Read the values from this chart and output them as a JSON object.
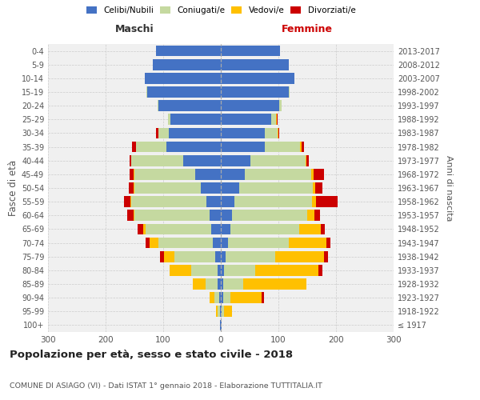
{
  "age_groups": [
    "100+",
    "95-99",
    "90-94",
    "85-89",
    "80-84",
    "75-79",
    "70-74",
    "65-69",
    "60-64",
    "55-59",
    "50-54",
    "45-49",
    "40-44",
    "35-39",
    "30-34",
    "25-29",
    "20-24",
    "15-19",
    "10-14",
    "5-9",
    "0-4"
  ],
  "birth_years": [
    "≤ 1917",
    "1918-1922",
    "1923-1927",
    "1928-1932",
    "1933-1937",
    "1938-1942",
    "1943-1947",
    "1948-1952",
    "1953-1957",
    "1958-1962",
    "1963-1967",
    "1968-1972",
    "1973-1977",
    "1978-1982",
    "1983-1987",
    "1988-1992",
    "1993-1997",
    "1998-2002",
    "2003-2007",
    "2008-2012",
    "2013-2017"
  ],
  "males": {
    "celibi": [
      1,
      2,
      3,
      5,
      6,
      10,
      14,
      16,
      20,
      25,
      35,
      45,
      65,
      95,
      90,
      88,
      108,
      128,
      132,
      118,
      112
    ],
    "coniugati": [
      0,
      3,
      8,
      22,
      45,
      70,
      95,
      115,
      130,
      130,
      115,
      105,
      90,
      52,
      18,
      4,
      2,
      1,
      0,
      0,
      0
    ],
    "vedovi": [
      0,
      4,
      8,
      22,
      38,
      18,
      15,
      4,
      2,
      2,
      1,
      1,
      0,
      0,
      0,
      0,
      0,
      0,
      0,
      0,
      0
    ],
    "divorziati": [
      0,
      0,
      0,
      0,
      0,
      7,
      6,
      9,
      11,
      11,
      9,
      7,
      4,
      7,
      4,
      0,
      0,
      0,
      0,
      0,
      0
    ]
  },
  "females": {
    "nubili": [
      1,
      2,
      4,
      4,
      5,
      9,
      13,
      16,
      20,
      23,
      32,
      42,
      52,
      76,
      76,
      88,
      102,
      118,
      128,
      118,
      103
    ],
    "coniugate": [
      0,
      4,
      12,
      35,
      55,
      85,
      105,
      120,
      130,
      135,
      128,
      115,
      95,
      62,
      23,
      8,
      4,
      1,
      0,
      0,
      0
    ],
    "vedove": [
      0,
      13,
      55,
      110,
      110,
      85,
      65,
      38,
      13,
      7,
      4,
      4,
      2,
      2,
      1,
      1,
      0,
      0,
      0,
      0,
      0
    ],
    "divorziate": [
      0,
      0,
      4,
      0,
      7,
      7,
      7,
      7,
      9,
      38,
      13,
      18,
      4,
      4,
      2,
      2,
      0,
      0,
      0,
      0,
      0
    ]
  },
  "colors": {
    "celibi": "#4472c4",
    "coniugati": "#c5d9a0",
    "vedovi": "#ffc000",
    "divorziati": "#cc0000"
  },
  "title": "Popolazione per età, sesso e stato civile - 2018",
  "subtitle": "COMUNE DI ASIAGO (VI) - Dati ISTAT 1° gennaio 2018 - Elaborazione TUTTITALIA.IT",
  "ylabel": "Fasce di età",
  "ylabel2": "Anni di nascita",
  "xlabel_left": "Maschi",
  "xlabel_right": "Femmine",
  "xlim": 300,
  "background_color": "#ffffff",
  "grid_color": "#cccccc"
}
